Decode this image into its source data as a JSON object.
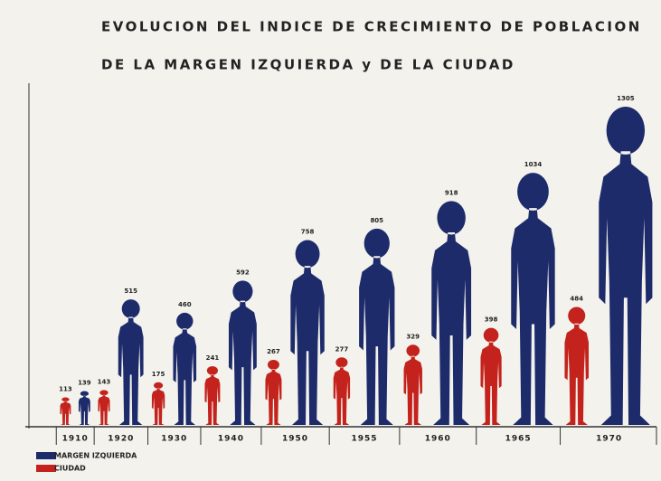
{
  "chart_data": {
    "type": "pictogram",
    "title": "EVOLUCION DEL INDICE DE CRECIMIENTO DE POBLACION",
    "subtitle": "DE LA MARGEN IZQUIERDA y DE LA CIUDAD",
    "categories": [
      "1910",
      "1920",
      "1930",
      "1940",
      "1950",
      "1955",
      "1960",
      "1965",
      "1970"
    ],
    "series": [
      {
        "name": "CIUDAD",
        "color": "#c4231d",
        "values": [
          113,
          143,
          175,
          241,
          267,
          277,
          329,
          398,
          484
        ]
      },
      {
        "name": "MARGEN IZQUIERDA",
        "color": "#1d2b6b",
        "values": [
          139,
          515,
          460,
          592,
          758,
          805,
          918,
          1034,
          1305
        ]
      }
    ]
  }
}
